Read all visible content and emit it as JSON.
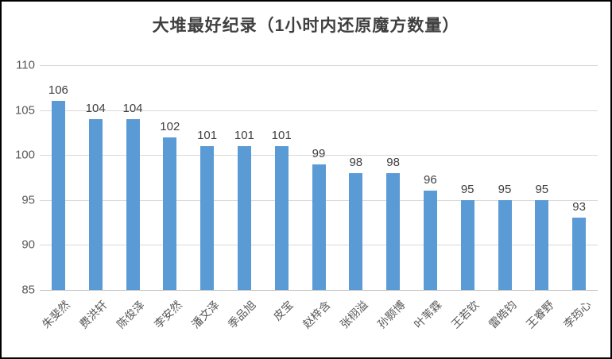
{
  "chart_data": {
    "type": "bar",
    "title": "大堆最好纪录（1小时内还原魔方数量）",
    "categories": [
      "朱斐然",
      "费洪轩",
      "陈俊泽",
      "李安然",
      "潘文泽",
      "季品旭",
      "皮宝",
      "赵梓含",
      "张栩溢",
      "孙颢博",
      "叶苇霖",
      "王若钦",
      "雷皓钧",
      "王睿野",
      "李筠心"
    ],
    "values": [
      106,
      104,
      104,
      102,
      101,
      101,
      101,
      99,
      98,
      98,
      96,
      95,
      95,
      95,
      93
    ],
    "xlabel": "",
    "ylabel": "",
    "ylim": [
      85,
      110
    ],
    "yticks": [
      85,
      90,
      95,
      100,
      105,
      110
    ],
    "grid": true,
    "legend_position": "none",
    "data_labels": true,
    "bar_color": "#5b9bd5",
    "gridline_color": "#d9d9d9",
    "axis_text_color": "#595959",
    "label_text_color": "#404040",
    "title_color": "#3f3f3f"
  }
}
